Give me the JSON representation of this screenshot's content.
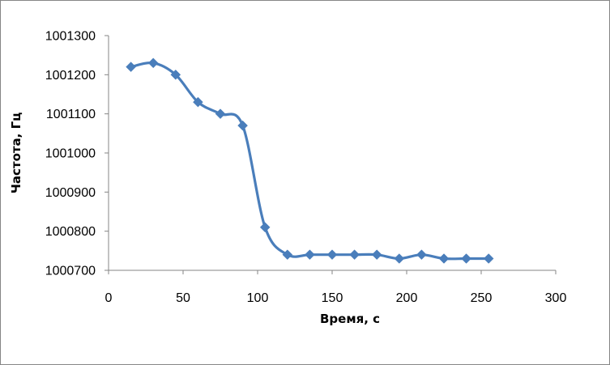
{
  "chart_data": {
    "type": "line",
    "title": "",
    "xlabel": "Время, с",
    "ylabel": "Частота, Гц",
    "xlim": [
      0,
      300
    ],
    "ylim": [
      1000700,
      1001300
    ],
    "x_ticks": [
      "0",
      "50",
      "100",
      "150",
      "200",
      "250",
      "300"
    ],
    "y_ticks": [
      "1000700",
      "1000800",
      "1000900",
      "1001000",
      "1001100",
      "1001200",
      "1001300"
    ],
    "grid": false,
    "legend": "none",
    "smooth": true,
    "marker": "diamond",
    "series": [
      {
        "color": "#4A7EBB",
        "x": [
          15,
          30,
          45,
          60,
          75,
          90,
          105,
          120,
          135,
          150,
          165,
          180,
          195,
          210,
          225,
          240,
          255
        ],
        "y": [
          1001220,
          1001230,
          1001200,
          1001130,
          1001100,
          1001070,
          1000810,
          1000740,
          1000740,
          1000740,
          1000740,
          1000740,
          1000730,
          1000740,
          1000730,
          1000730,
          1000730
        ]
      }
    ]
  }
}
